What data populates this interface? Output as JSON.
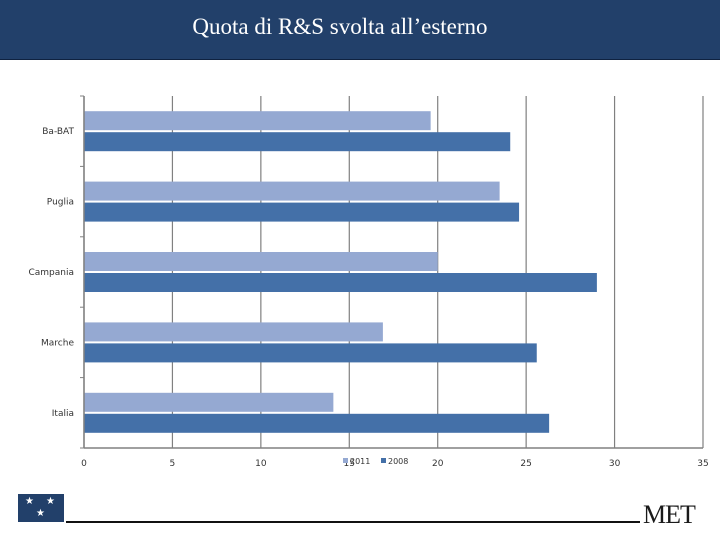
{
  "header": {
    "title": "Quota di R&S svolta all’esterno"
  },
  "footer": {
    "logo_icon": "eu-stars-icon",
    "brand": "MET"
  },
  "colors": {
    "header_bg": "#22406a",
    "series_2011": "#95a9d2",
    "series_2008": "#4470a8",
    "grid": "#808080"
  },
  "chart_data": {
    "type": "bar",
    "orientation": "horizontal",
    "title": "Quota di R&S svolta all’esterno",
    "categories": [
      "Ba-BAT",
      "Puglia",
      "Campania",
      "Marche",
      "Italia"
    ],
    "series": [
      {
        "name": "2011",
        "values": [
          19.6,
          23.5,
          20.0,
          16.9,
          14.1
        ]
      },
      {
        "name": "2008",
        "values": [
          24.1,
          24.6,
          29.0,
          25.6,
          26.3
        ]
      }
    ],
    "xlim": [
      0,
      35
    ],
    "xticks": [
      0,
      5,
      10,
      15,
      20,
      25,
      30,
      35
    ],
    "grid": true,
    "legend_position": "bottom-center"
  }
}
